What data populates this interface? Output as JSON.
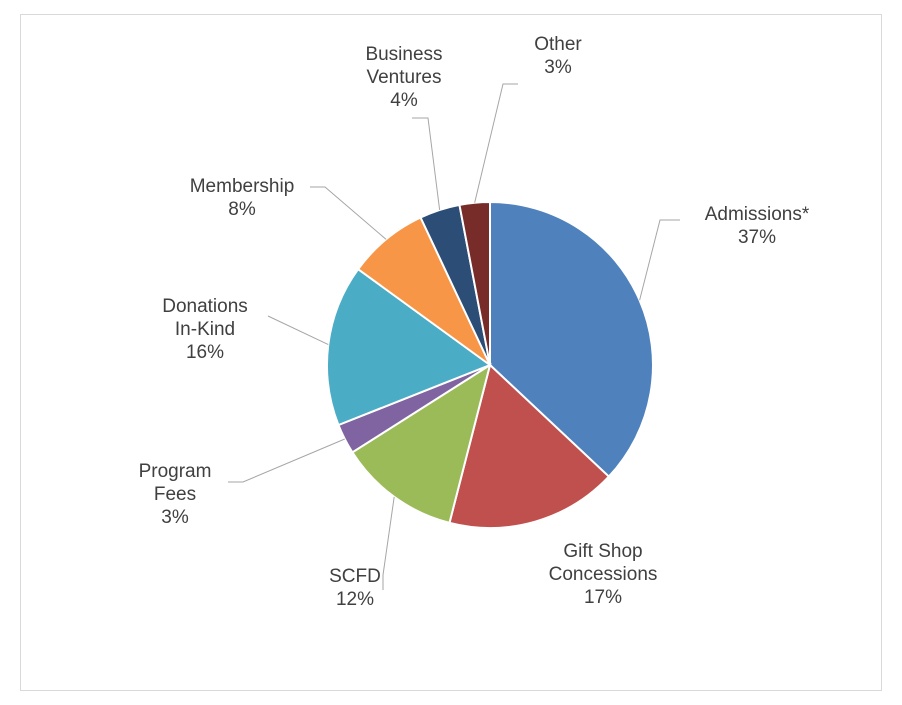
{
  "chart_data": {
    "type": "pie",
    "categories": [
      "Admissions*",
      "Gift Shop\nConcessions",
      "SCFD",
      "Program\nFees",
      "Donations\nIn-Kind",
      "Membership",
      "Business\nVentures",
      "Other"
    ],
    "values": [
      37,
      17,
      12,
      3,
      16,
      8,
      4,
      3
    ],
    "value_labels": [
      "37%",
      "17%",
      "12%",
      "3%",
      "16%",
      "8%",
      "4%",
      "3%"
    ],
    "colors": [
      "#4f81bd",
      "#c0504d",
      "#9bbb59",
      "#8064a2",
      "#4bacc6",
      "#f79646",
      "#2c4d75",
      "#772c2a"
    ]
  }
}
